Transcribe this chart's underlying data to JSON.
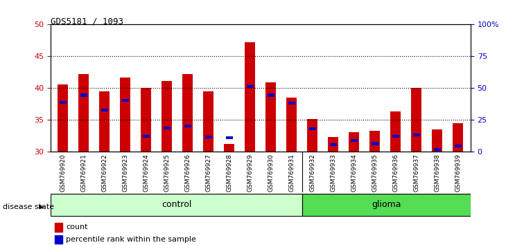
{
  "title": "GDS5181 / 1093",
  "samples": [
    "GSM769920",
    "GSM769921",
    "GSM769922",
    "GSM769923",
    "GSM769924",
    "GSM769925",
    "GSM769926",
    "GSM769927",
    "GSM769928",
    "GSM769929",
    "GSM769930",
    "GSM769931",
    "GSM769932",
    "GSM769933",
    "GSM769934",
    "GSM769935",
    "GSM769936",
    "GSM769937",
    "GSM769938",
    "GSM769939"
  ],
  "count_values": [
    40.6,
    42.2,
    39.5,
    41.7,
    40.0,
    41.1,
    42.2,
    39.5,
    31.2,
    47.2,
    40.9,
    38.5,
    35.2,
    32.3,
    33.1,
    33.3,
    36.4,
    40.0,
    33.5,
    34.5
  ],
  "percentile_values": [
    37.8,
    38.9,
    36.6,
    38.1,
    32.4,
    33.7,
    34.1,
    32.3,
    32.2,
    40.3,
    38.9,
    37.7,
    33.6,
    31.1,
    31.8,
    31.3,
    32.4,
    32.7,
    30.4,
    30.9
  ],
  "ymin": 30,
  "ymax": 50,
  "yticks_left": [
    30,
    35,
    40,
    45,
    50
  ],
  "yticks_right": [
    0,
    25,
    50,
    75,
    100
  ],
  "yticks_right_labels": [
    "0",
    "25",
    "50",
    "75",
    "100%"
  ],
  "bar_color": "#cc0000",
  "percentile_color": "#0000cc",
  "control_count": 12,
  "control_label": "control",
  "glioma_label": "glioma",
  "control_color": "#ccffcc",
  "glioma_color": "#55dd55",
  "disease_state_label": "disease state",
  "legend_count": "count",
  "legend_percentile": "percentile rank within the sample",
  "bg_color": "#d8d8d8",
  "plot_bg_color": "#ffffff",
  "left_ytick_color": "#cc0000",
  "right_ytick_color": "#0000cc"
}
